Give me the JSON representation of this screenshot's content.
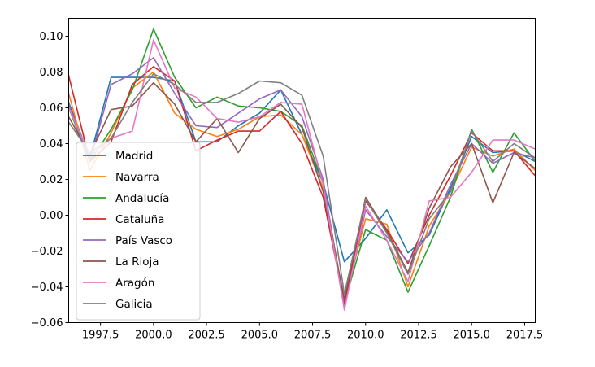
{
  "chart_data": {
    "type": "line",
    "title": "",
    "xlabel": "",
    "ylabel": "",
    "xlim": [
      1996,
      2018
    ],
    "ylim": [
      -0.06,
      0.11
    ],
    "x_ticks": [
      1997.5,
      2000.0,
      2002.5,
      2005.0,
      2007.5,
      2010.0,
      2012.5,
      2015.0,
      2017.5
    ],
    "x_tick_labels": [
      "1997.5",
      "2000.0",
      "2002.5",
      "2005.0",
      "2007.5",
      "2010.0",
      "2012.5",
      "2015.0",
      "2017.5"
    ],
    "y_ticks": [
      -0.06,
      -0.04,
      -0.02,
      0.0,
      0.02,
      0.04,
      0.06,
      0.08,
      0.1
    ],
    "y_tick_labels": [
      "−0.06",
      "−0.04",
      "−0.02",
      "0.00",
      "0.02",
      "0.04",
      "0.06",
      "0.08",
      "0.10"
    ],
    "grid": false,
    "legend_position": "lower-left",
    "x": [
      1996,
      1997,
      1998,
      1999,
      2000,
      2001,
      2002,
      2003,
      2004,
      2005,
      2006,
      2007,
      2008,
      2009,
      2010,
      2011,
      2012,
      2013,
      2014,
      2015,
      2016,
      2017,
      2018
    ],
    "series": [
      {
        "name": "Madrid",
        "color": "#1f77b4",
        "values": [
          0.063,
          0.032,
          0.077,
          0.077,
          0.077,
          0.075,
          0.041,
          0.041,
          0.05,
          0.057,
          0.07,
          0.045,
          0.018,
          -0.026,
          -0.013,
          0.003,
          -0.021,
          -0.011,
          0.015,
          0.044,
          0.035,
          0.036,
          0.03
        ]
      },
      {
        "name": "Navarra",
        "color": "#ff7f0e",
        "values": [
          0.068,
          0.025,
          0.046,
          0.071,
          0.08,
          0.057,
          0.048,
          0.044,
          0.048,
          0.055,
          0.056,
          0.045,
          0.015,
          -0.048,
          -0.002,
          -0.005,
          -0.04,
          -0.006,
          0.013,
          0.038,
          0.033,
          0.037,
          0.025
        ]
      },
      {
        "name": "Andalucía",
        "color": "#2ca02c",
        "values": [
          0.06,
          0.03,
          0.048,
          0.07,
          0.104,
          0.077,
          0.06,
          0.066,
          0.061,
          0.06,
          0.058,
          0.05,
          0.018,
          -0.049,
          -0.008,
          -0.014,
          -0.043,
          -0.017,
          0.01,
          0.048,
          0.024,
          0.046,
          0.03
        ]
      },
      {
        "name": "Cataluña",
        "color": "#d62728",
        "values": [
          0.078,
          0.03,
          0.041,
          0.073,
          0.083,
          0.075,
          0.036,
          0.042,
          0.047,
          0.047,
          0.058,
          0.04,
          0.01,
          -0.049,
          0.008,
          -0.008,
          -0.027,
          0.0,
          0.022,
          0.046,
          0.036,
          0.036,
          0.022
        ]
      },
      {
        "name": "País Vasco",
        "color": "#9467bd",
        "values": [
          0.062,
          0.03,
          0.073,
          0.079,
          0.088,
          0.068,
          0.05,
          0.049,
          0.057,
          0.065,
          0.07,
          0.055,
          0.02,
          -0.052,
          0.003,
          -0.012,
          -0.026,
          -0.01,
          0.017,
          0.04,
          0.029,
          0.035,
          0.032
        ]
      },
      {
        "name": "La Rioja",
        "color": "#8c564b",
        "values": [
          0.055,
          0.034,
          0.059,
          0.061,
          0.074,
          0.062,
          0.041,
          0.054,
          0.035,
          0.054,
          0.062,
          0.049,
          0.013,
          -0.047,
          0.01,
          -0.009,
          -0.032,
          0.004,
          0.027,
          0.04,
          0.007,
          0.035,
          0.026
        ]
      },
      {
        "name": "Aragón",
        "color": "#e377c2",
        "values": [
          0.06,
          0.033,
          0.043,
          0.047,
          0.098,
          0.071,
          0.066,
          0.054,
          0.052,
          0.055,
          0.063,
          0.062,
          0.017,
          -0.053,
          0.005,
          -0.014,
          -0.037,
          0.008,
          0.01,
          0.024,
          0.042,
          0.042,
          0.037
        ]
      },
      {
        "name": "Galicia",
        "color": "#7f7f7f",
        "values": [
          0.052,
          0.035,
          0.043,
          0.063,
          0.079,
          0.073,
          0.063,
          0.063,
          0.068,
          0.075,
          0.074,
          0.067,
          0.033,
          -0.044,
          0.009,
          -0.01,
          -0.033,
          -0.002,
          0.013,
          0.047,
          0.03,
          0.04,
          0.032
        ]
      }
    ]
  }
}
